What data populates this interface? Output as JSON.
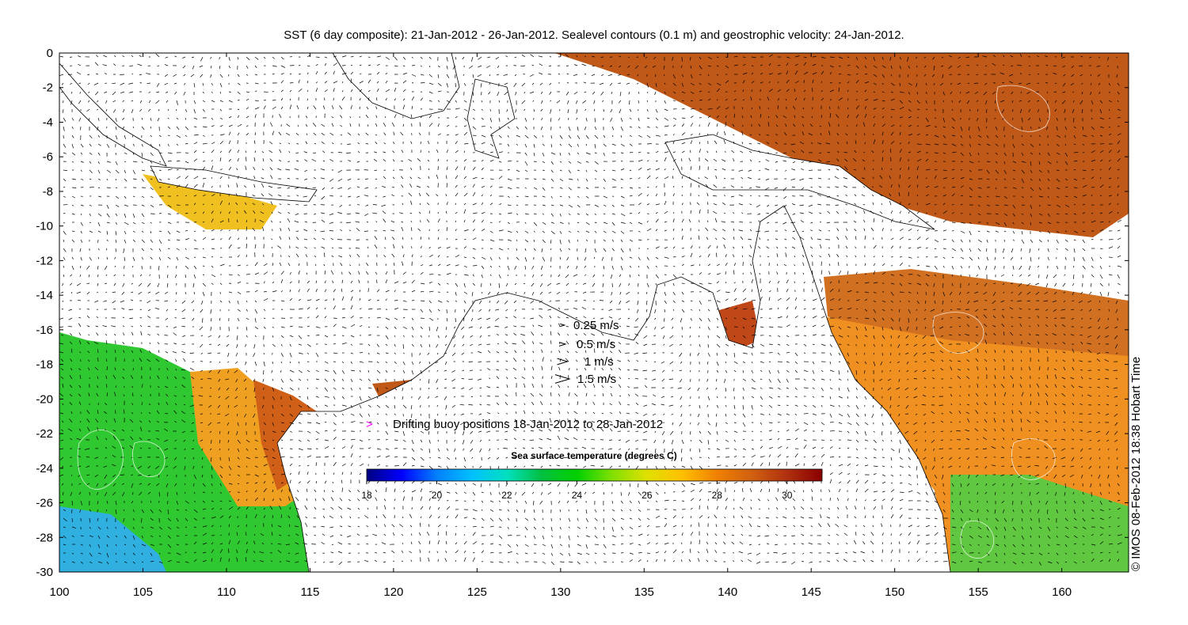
{
  "title": "SST (6 day composite): 21-Jan-2012 - 26-Jan-2012. Sealevel contours (0.1 m) and geostrophic velocity: 24-Jan-2012.",
  "credit": "© IMOS 08-Feb-2012 18:38 Hobart Time",
  "axes": {
    "x_range": [
      100,
      164
    ],
    "y_range": [
      -30,
      0
    ],
    "x_ticks": [
      "100",
      "105",
      "110",
      "115",
      "120",
      "125",
      "130",
      "135",
      "140",
      "145",
      "150",
      "155",
      "160"
    ],
    "y_ticks": [
      "0",
      "-2",
      "-4",
      "-6",
      "-8",
      "-10",
      "-12",
      "-14",
      "-16",
      "-18",
      "-20",
      "-22",
      "-24",
      "-26",
      "-28",
      "-30"
    ]
  },
  "velocity_legend": [
    {
      "label": "0.25 m/s",
      "speed": 0.25
    },
    {
      "label": "0.5 m/s",
      "speed": 0.5
    },
    {
      "label": "1 m/s",
      "speed": 1
    },
    {
      "label": "1.5 m/s",
      "speed": 1.5
    }
  ],
  "buoy_legend": {
    "symbol": ">",
    "label": "Drifting buoy positions 18-Jan-2012 to 28-Jan-2012",
    "color": "#ff00ff"
  },
  "colorbar": {
    "title": "Sea surface temperature (degrees C)",
    "range": [
      18,
      31
    ],
    "ticks": [
      "18",
      "20",
      "22",
      "24",
      "26",
      "28",
      "30"
    ],
    "colors": [
      "#00007f",
      "#0000ff",
      "#0080ff",
      "#00c0ff",
      "#00e0c0",
      "#00c040",
      "#00d000",
      "#80e000",
      "#e0e000",
      "#ffc000",
      "#f08000",
      "#d06010",
      "#b03010",
      "#8b0000"
    ]
  },
  "colors": {
    "land": "#ffffff",
    "coast": "#000000",
    "contour": "#ffffff",
    "arrow": "#000000"
  }
}
